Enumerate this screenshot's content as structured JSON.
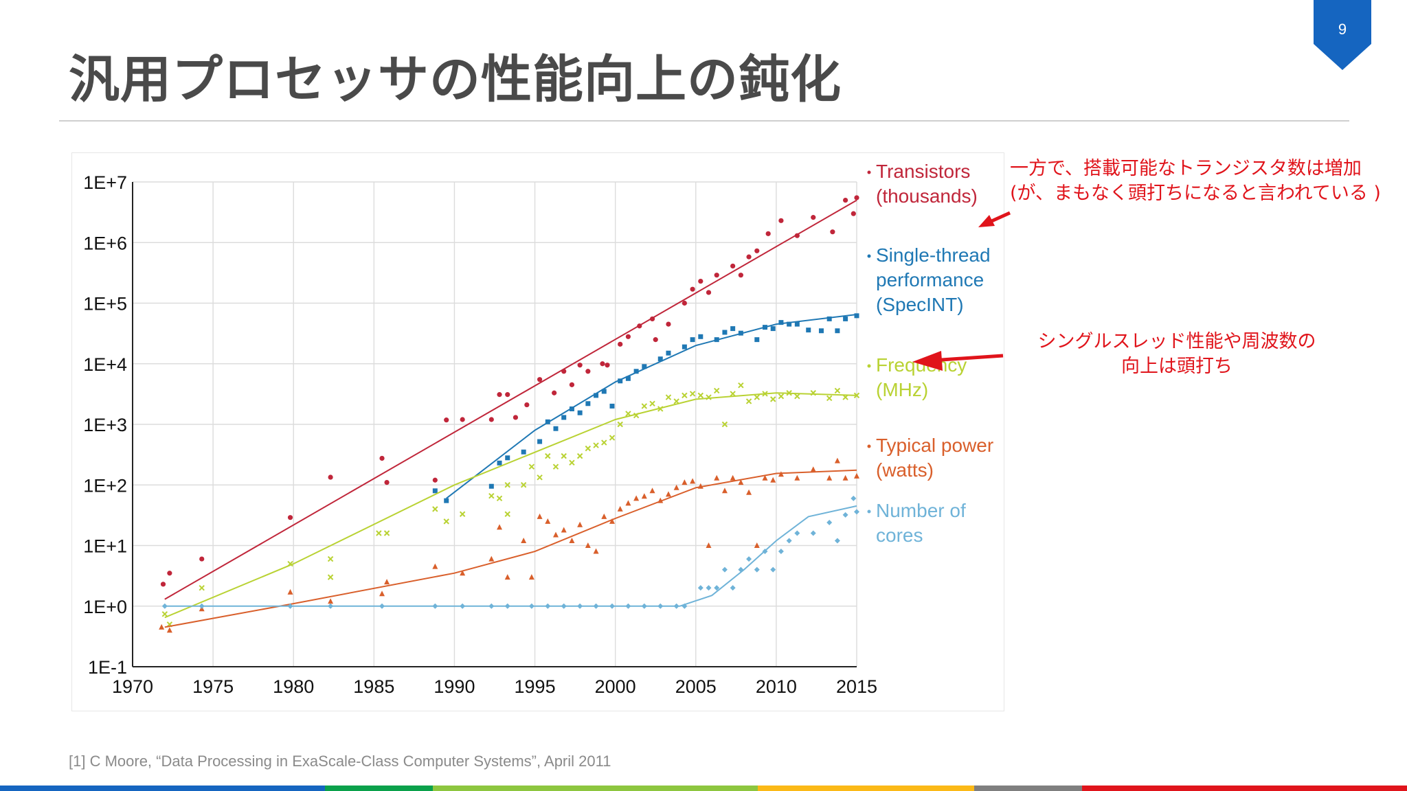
{
  "page": {
    "number": "9",
    "badge_color": "#1565c0"
  },
  "title": "汎用プロセッサの性能向上の鈍化",
  "annotations": {
    "transistors_note_line1": "一方で、搭載可能なトランジスタ数は増加",
    "transistors_note_line2": "(が、まもなく頭打ちになると言われている )",
    "single_thread_note_line1": "シングルスレッド性能や周波数の",
    "single_thread_note_line2": "向上は頭打ち",
    "color": "#e0141b"
  },
  "citation": "[1] C Moore, “Data Processing in ExaScale-Class Computer Systems”, April 2011",
  "footer_colors": [
    "#1565c0",
    "#1565c0",
    "#1565c0",
    "#0aa14b",
    "#8dc63f",
    "#8dc63f",
    "#8dc63f",
    "#fbb917",
    "#fbb917",
    "#7f7f7f",
    "#e0141b",
    "#e0141b",
    "#e0141b"
  ],
  "chart_data": {
    "type": "scatter",
    "title": "",
    "xlabel": "",
    "ylabel": "",
    "y_scale": "log",
    "xlim": [
      1970,
      2015
    ],
    "ylim": [
      0.1,
      10000000
    ],
    "x_ticks": [
      "1970",
      "1975",
      "1980",
      "1985",
      "1990",
      "1995",
      "2000",
      "2005",
      "2010",
      "2015"
    ],
    "x_tick_values": [
      1970,
      1975,
      1980,
      1985,
      1990,
      1995,
      2000,
      2005,
      2010,
      2015
    ],
    "y_ticks": [
      "1E+7",
      "1E+6",
      "1E+5",
      "1E+4",
      "1E+3",
      "1E+2",
      "1E+1",
      "1E+0",
      "1E-1"
    ],
    "y_tick_values": [
      10000000,
      1000000,
      100000,
      10000,
      1000,
      100,
      10,
      1,
      0.1
    ],
    "grid": true,
    "legend_position": "right",
    "series": [
      {
        "name": "Transistors (thousands)",
        "legend_lines": [
          "Transistors",
          "(thousands)"
        ],
        "color": "#c0263a",
        "marker": "circle",
        "points": [
          [
            1971.9,
            2.3
          ],
          [
            1972.3,
            3.5
          ],
          [
            1974.3,
            6
          ],
          [
            1979.8,
            29
          ],
          [
            1982.3,
            134
          ],
          [
            1985.5,
            275
          ],
          [
            1985.8,
            110
          ],
          [
            1988.8,
            120
          ],
          [
            1989.5,
            1180
          ],
          [
            1990.5,
            1200
          ],
          [
            1992.3,
            1200
          ],
          [
            1992.8,
            3100
          ],
          [
            1993.3,
            3100
          ],
          [
            1993.8,
            1300
          ],
          [
            1994.5,
            2100
          ],
          [
            1995.3,
            5500
          ],
          [
            1996.2,
            3300
          ],
          [
            1996.8,
            7500
          ],
          [
            1997.3,
            4500
          ],
          [
            1997.8,
            9500
          ],
          [
            1998.3,
            7500
          ],
          [
            1999.2,
            10000
          ],
          [
            1999.5,
            9500
          ],
          [
            2000.3,
            21000
          ],
          [
            2000.8,
            28000
          ],
          [
            2001.5,
            42000
          ],
          [
            2002.3,
            55000
          ],
          [
            2002.5,
            25000
          ],
          [
            2003.3,
            45000
          ],
          [
            2004.3,
            100000
          ],
          [
            2004.8,
            170000
          ],
          [
            2005.3,
            230000
          ],
          [
            2005.8,
            150000
          ],
          [
            2006.3,
            290000
          ],
          [
            2007.3,
            410000
          ],
          [
            2007.8,
            290000
          ],
          [
            2008.3,
            580000
          ],
          [
            2008.8,
            730000
          ],
          [
            2009.5,
            1400000
          ],
          [
            2010.3,
            2300000
          ],
          [
            2011.3,
            1300000
          ],
          [
            2012.3,
            2600000
          ],
          [
            2013.5,
            1500000
          ],
          [
            2014.3,
            5000000
          ],
          [
            2014.8,
            3000000
          ],
          [
            2015.0,
            5500000
          ]
        ],
        "trend": [
          [
            1972,
            1.3
          ],
          [
            2015,
            5000000
          ]
        ]
      },
      {
        "name": "Single-thread performance (SpecINT)",
        "legend_lines": [
          "Single-thread",
          "performance",
          "(SpecINT)"
        ],
        "color": "#1f78b4",
        "marker": "square",
        "points": [
          [
            1988.8,
            80
          ],
          [
            1989.5,
            55
          ],
          [
            1992.3,
            95
          ],
          [
            1992.8,
            230
          ],
          [
            1993.3,
            280
          ],
          [
            1994.3,
            350
          ],
          [
            1995.3,
            520
          ],
          [
            1995.8,
            1100
          ],
          [
            1996.3,
            850
          ],
          [
            1996.8,
            1300
          ],
          [
            1997.3,
            1800
          ],
          [
            1997.8,
            1550
          ],
          [
            1998.3,
            2200
          ],
          [
            1998.8,
            3000
          ],
          [
            1999.3,
            3500
          ],
          [
            1999.8,
            2000
          ],
          [
            2000.3,
            5200
          ],
          [
            2000.8,
            5700
          ],
          [
            2001.3,
            7500
          ],
          [
            2001.8,
            9000
          ],
          [
            2002.8,
            12000
          ],
          [
            2003.3,
            15000
          ],
          [
            2004.3,
            19000
          ],
          [
            2004.8,
            25000
          ],
          [
            2005.3,
            28000
          ],
          [
            2006.3,
            25000
          ],
          [
            2006.8,
            33000
          ],
          [
            2007.3,
            38000
          ],
          [
            2007.8,
            32000
          ],
          [
            2008.8,
            25000
          ],
          [
            2009.3,
            40000
          ],
          [
            2009.8,
            38000
          ],
          [
            2010.3,
            48000
          ],
          [
            2010.8,
            45000
          ],
          [
            2011.3,
            45000
          ],
          [
            2012.0,
            36000
          ],
          [
            2012.8,
            35000
          ],
          [
            2013.3,
            55000
          ],
          [
            2013.8,
            35000
          ],
          [
            2014.3,
            55000
          ],
          [
            2015.0,
            62000
          ]
        ],
        "trend": [
          [
            1989.5,
            60
          ],
          [
            1995,
            800
          ],
          [
            2000,
            5000
          ],
          [
            2005,
            20000
          ],
          [
            2010,
            45000
          ],
          [
            2015,
            65000
          ]
        ]
      },
      {
        "name": "Frequency (MHz)",
        "legend_lines": [
          "Frequency",
          "(MHz)"
        ],
        "color": "#b9d233",
        "marker": "x",
        "points": [
          [
            1972,
            0.74
          ],
          [
            1972.3,
            0.5
          ],
          [
            1974.3,
            2
          ],
          [
            1979.8,
            5
          ],
          [
            1982.3,
            6
          ],
          [
            1982.3,
            3
          ],
          [
            1985.3,
            16
          ],
          [
            1985.8,
            16
          ],
          [
            1988.8,
            40
          ],
          [
            1989.5,
            25
          ],
          [
            1990.5,
            33
          ],
          [
            1992.3,
            66
          ],
          [
            1992.8,
            60
          ],
          [
            1993.3,
            100
          ],
          [
            1993.3,
            33
          ],
          [
            1994.3,
            100
          ],
          [
            1994.8,
            200
          ],
          [
            1995.3,
            133
          ],
          [
            1995.8,
            300
          ],
          [
            1996.3,
            200
          ],
          [
            1996.8,
            300
          ],
          [
            1997.3,
            233
          ],
          [
            1997.8,
            300
          ],
          [
            1998.3,
            400
          ],
          [
            1998.8,
            450
          ],
          [
            1999.3,
            500
          ],
          [
            1999.8,
            600
          ],
          [
            2000.3,
            1000
          ],
          [
            2000.8,
            1500
          ],
          [
            2001.3,
            1400
          ],
          [
            2001.8,
            2000
          ],
          [
            2002.3,
            2200
          ],
          [
            2002.8,
            1800
          ],
          [
            2003.3,
            2800
          ],
          [
            2003.8,
            2400
          ],
          [
            2004.3,
            3000
          ],
          [
            2004.8,
            3200
          ],
          [
            2005.3,
            3000
          ],
          [
            2005.8,
            2800
          ],
          [
            2006.3,
            3600
          ],
          [
            2006.8,
            1000
          ],
          [
            2007.3,
            3200
          ],
          [
            2007.8,
            4400
          ],
          [
            2008.3,
            2400
          ],
          [
            2008.8,
            2800
          ],
          [
            2009.3,
            3200
          ],
          [
            2009.8,
            2600
          ],
          [
            2010.3,
            2900
          ],
          [
            2010.8,
            3300
          ],
          [
            2011.3,
            2900
          ],
          [
            2012.3,
            3300
          ],
          [
            2013.3,
            2700
          ],
          [
            2013.8,
            3600
          ],
          [
            2014.3,
            2800
          ],
          [
            2015.0,
            3000
          ]
        ],
        "trend": [
          [
            1972,
            0.65
          ],
          [
            1980,
            5
          ],
          [
            1990,
            100
          ],
          [
            2000,
            1200
          ],
          [
            2005,
            2600
          ],
          [
            2010,
            3300
          ],
          [
            2015,
            3000
          ]
        ]
      },
      {
        "name": "Typical power (watts)",
        "legend_lines": [
          "Typical power",
          "(watts)"
        ],
        "color": "#d95f2b",
        "marker": "triangle",
        "points": [
          [
            1971.8,
            0.45
          ],
          [
            1972.3,
            0.4
          ],
          [
            1974.3,
            0.9
          ],
          [
            1979.8,
            1.7
          ],
          [
            1982.3,
            1.2
          ],
          [
            1985.5,
            1.6
          ],
          [
            1985.8,
            2.5
          ],
          [
            1988.8,
            4.5
          ],
          [
            1990.5,
            3.5
          ],
          [
            1992.3,
            6
          ],
          [
            1992.8,
            20
          ],
          [
            1993.3,
            3
          ],
          [
            1994.3,
            12
          ],
          [
            1994.8,
            3
          ],
          [
            1995.3,
            30
          ],
          [
            1995.8,
            25
          ],
          [
            1996.3,
            15
          ],
          [
            1996.8,
            18
          ],
          [
            1997.3,
            12
          ],
          [
            1997.8,
            22
          ],
          [
            1998.3,
            10
          ],
          [
            1998.8,
            8
          ],
          [
            1999.3,
            30
          ],
          [
            1999.8,
            25
          ],
          [
            2000.3,
            40
          ],
          [
            2000.8,
            50
          ],
          [
            2001.3,
            60
          ],
          [
            2001.8,
            65
          ],
          [
            2002.3,
            80
          ],
          [
            2002.8,
            55
          ],
          [
            2003.3,
            70
          ],
          [
            2003.8,
            90
          ],
          [
            2004.3,
            110
          ],
          [
            2004.8,
            115
          ],
          [
            2005.3,
            95
          ],
          [
            2005.8,
            10
          ],
          [
            2006.3,
            130
          ],
          [
            2006.8,
            80
          ],
          [
            2007.3,
            130
          ],
          [
            2007.8,
            110
          ],
          [
            2008.3,
            75
          ],
          [
            2008.8,
            10
          ],
          [
            2009.3,
            130
          ],
          [
            2009.8,
            120
          ],
          [
            2010.3,
            150
          ],
          [
            2011.3,
            130
          ],
          [
            2012.3,
            180
          ],
          [
            2013.3,
            130
          ],
          [
            2013.8,
            250
          ],
          [
            2014.3,
            130
          ],
          [
            2015.0,
            140
          ]
        ],
        "trend": [
          [
            1972,
            0.45
          ],
          [
            1980,
            1.1
          ],
          [
            1990,
            3.5
          ],
          [
            1995,
            8
          ],
          [
            2000,
            28
          ],
          [
            2005,
            90
          ],
          [
            2010,
            155
          ],
          [
            2015,
            175
          ]
        ]
      },
      {
        "name": "Number of cores",
        "legend_lines": [
          "Number of",
          "cores"
        ],
        "color": "#6fb3d8",
        "marker": "diamond",
        "points": [
          [
            1972,
            1
          ],
          [
            1974.3,
            1
          ],
          [
            1979.8,
            1
          ],
          [
            1982.3,
            1
          ],
          [
            1985.5,
            1
          ],
          [
            1988.8,
            1
          ],
          [
            1990.5,
            1
          ],
          [
            1992.3,
            1
          ],
          [
            1993.3,
            1
          ],
          [
            1994.8,
            1
          ],
          [
            1995.8,
            1
          ],
          [
            1996.8,
            1
          ],
          [
            1997.8,
            1
          ],
          [
            1998.8,
            1
          ],
          [
            1999.8,
            1
          ],
          [
            2000.8,
            1
          ],
          [
            2001.8,
            1
          ],
          [
            2002.8,
            1
          ],
          [
            2003.8,
            1
          ],
          [
            2004.3,
            1
          ],
          [
            2005.3,
            2
          ],
          [
            2005.8,
            2
          ],
          [
            2006.3,
            2
          ],
          [
            2006.8,
            4
          ],
          [
            2007.3,
            2
          ],
          [
            2007.8,
            4
          ],
          [
            2008.3,
            6
          ],
          [
            2008.8,
            4
          ],
          [
            2009.3,
            8
          ],
          [
            2009.8,
            4
          ],
          [
            2010.3,
            8
          ],
          [
            2010.8,
            12
          ],
          [
            2011.3,
            16
          ],
          [
            2012.3,
            16
          ],
          [
            2013.3,
            24
          ],
          [
            2013.8,
            12
          ],
          [
            2014.3,
            32
          ],
          [
            2014.8,
            60
          ],
          [
            2015.0,
            36
          ]
        ],
        "trend": [
          [
            1972,
            1
          ],
          [
            2004,
            1
          ],
          [
            2006,
            1.5
          ],
          [
            2008,
            4
          ],
          [
            2010,
            12
          ],
          [
            2012,
            30
          ],
          [
            2015,
            45
          ]
        ]
      }
    ]
  }
}
